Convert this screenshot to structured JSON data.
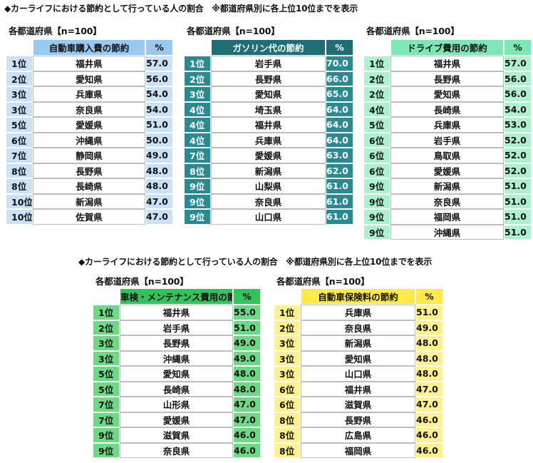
{
  "title_top": "◆カーライフにおける節約として行っている人の割合　※都道府県別に各上位10位までを表示",
  "title_bottom": "◆カーライフにおける節約として行っている人の割合　※都道府県別に各上位10位までを表示",
  "value_header": "%",
  "colors": {
    "t1_header": "#99c9ee",
    "t1_cell": "#c9e2f7",
    "t2_header": "#1f6e76",
    "t2_cell": "#2a8a92",
    "t3_header": "#7ee8b4",
    "t3_cell": "#aef1cf",
    "t4_header": "#35c25a",
    "t4_cell": "#6ed886",
    "t5_header": "#ffe84a",
    "t5_cell": "#fff18f"
  },
  "chart_data": [
    {
      "type": "table",
      "subtitle": "各都道府県【n=100】",
      "column_header": "自動車購入費の節約",
      "rows": [
        {
          "rank": "1位",
          "pref": "福井県",
          "value": "57.0"
        },
        {
          "rank": "2位",
          "pref": "愛知県",
          "value": "56.0"
        },
        {
          "rank": "3位",
          "pref": "兵庫県",
          "value": "54.0"
        },
        {
          "rank": "3位",
          "pref": "奈良県",
          "value": "54.0"
        },
        {
          "rank": "5位",
          "pref": "愛媛県",
          "value": "51.0"
        },
        {
          "rank": "6位",
          "pref": "沖縄県",
          "value": "50.0"
        },
        {
          "rank": "7位",
          "pref": "静岡県",
          "value": "49.0"
        },
        {
          "rank": "8位",
          "pref": "長野県",
          "value": "48.0"
        },
        {
          "rank": "8位",
          "pref": "長崎県",
          "value": "48.0"
        },
        {
          "rank": "10位",
          "pref": "新潟県",
          "value": "47.0"
        },
        {
          "rank": "10位",
          "pref": "佐賀県",
          "value": "47.0"
        }
      ]
    },
    {
      "type": "table",
      "subtitle": "各都道府県【n=100】",
      "column_header": "ガソリン代の節約",
      "rows": [
        {
          "rank": "1位",
          "pref": "岩手県",
          "value": "70.0"
        },
        {
          "rank": "2位",
          "pref": "長野県",
          "value": "66.0"
        },
        {
          "rank": "3位",
          "pref": "愛知県",
          "value": "65.0"
        },
        {
          "rank": "4位",
          "pref": "埼玉県",
          "value": "64.0"
        },
        {
          "rank": "4位",
          "pref": "福井県",
          "value": "64.0"
        },
        {
          "rank": "4位",
          "pref": "兵庫県",
          "value": "64.0"
        },
        {
          "rank": "7位",
          "pref": "愛媛県",
          "value": "63.0"
        },
        {
          "rank": "8位",
          "pref": "新潟県",
          "value": "62.0"
        },
        {
          "rank": "9位",
          "pref": "山梨県",
          "value": "61.0"
        },
        {
          "rank": "9位",
          "pref": "奈良県",
          "value": "61.0"
        },
        {
          "rank": "9位",
          "pref": "山口県",
          "value": "61.0"
        }
      ]
    },
    {
      "type": "table",
      "subtitle": "各都道府県【n=100】",
      "column_header": "ドライブ費用の節約",
      "rows": [
        {
          "rank": "1位",
          "pref": "福井県",
          "value": "57.0"
        },
        {
          "rank": "2位",
          "pref": "長野県",
          "value": "56.0"
        },
        {
          "rank": "2位",
          "pref": "愛知県",
          "value": "56.0"
        },
        {
          "rank": "4位",
          "pref": "長崎県",
          "value": "54.0"
        },
        {
          "rank": "5位",
          "pref": "兵庫県",
          "value": "53.0"
        },
        {
          "rank": "6位",
          "pref": "岩手県",
          "value": "52.0"
        },
        {
          "rank": "6位",
          "pref": "鳥取県",
          "value": "52.0"
        },
        {
          "rank": "6位",
          "pref": "愛媛県",
          "value": "52.0"
        },
        {
          "rank": "9位",
          "pref": "新潟県",
          "value": "51.0"
        },
        {
          "rank": "9位",
          "pref": "奈良県",
          "value": "51.0"
        },
        {
          "rank": "9位",
          "pref": "福岡県",
          "value": "51.0"
        },
        {
          "rank": "9位",
          "pref": "沖縄県",
          "value": "51.0"
        }
      ]
    },
    {
      "type": "table",
      "subtitle": "各都道府県【n=100】",
      "column_header": "車検・メンテナンス費用の節約",
      "rows": [
        {
          "rank": "1位",
          "pref": "福井県",
          "value": "55.0"
        },
        {
          "rank": "2位",
          "pref": "岩手県",
          "value": "51.0"
        },
        {
          "rank": "3位",
          "pref": "長野県",
          "value": "49.0"
        },
        {
          "rank": "3位",
          "pref": "沖縄県",
          "value": "49.0"
        },
        {
          "rank": "5位",
          "pref": "愛知県",
          "value": "48.0"
        },
        {
          "rank": "5位",
          "pref": "長崎県",
          "value": "48.0"
        },
        {
          "rank": "7位",
          "pref": "山形県",
          "value": "47.0"
        },
        {
          "rank": "7位",
          "pref": "愛媛県",
          "value": "47.0"
        },
        {
          "rank": "9位",
          "pref": "滋賀県",
          "value": "46.0"
        },
        {
          "rank": "9位",
          "pref": "奈良県",
          "value": "46.0"
        }
      ]
    },
    {
      "type": "table",
      "subtitle": "各都道府県【n=100】",
      "column_header": "自動車保険料の節約",
      "rows": [
        {
          "rank": "1位",
          "pref": "兵庫県",
          "value": "51.0"
        },
        {
          "rank": "2位",
          "pref": "奈良県",
          "value": "49.0"
        },
        {
          "rank": "3位",
          "pref": "新潟県",
          "value": "48.0"
        },
        {
          "rank": "3位",
          "pref": "愛知県",
          "value": "48.0"
        },
        {
          "rank": "3位",
          "pref": "山口県",
          "value": "48.0"
        },
        {
          "rank": "6位",
          "pref": "福井県",
          "value": "47.0"
        },
        {
          "rank": "6位",
          "pref": "滋賀県",
          "value": "47.0"
        },
        {
          "rank": "8位",
          "pref": "長野県",
          "value": "46.0"
        },
        {
          "rank": "8位",
          "pref": "広島県",
          "value": "46.0"
        },
        {
          "rank": "8位",
          "pref": "福岡県",
          "value": "46.0"
        }
      ]
    }
  ]
}
